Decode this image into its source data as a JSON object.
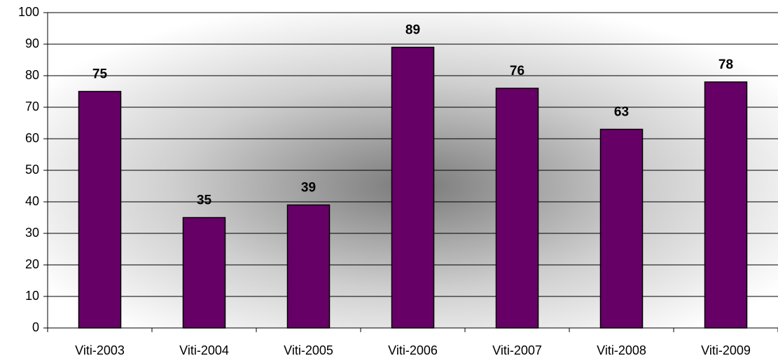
{
  "chart_data": {
    "type": "bar",
    "categories": [
      "Viti-2003",
      "Viti-2004",
      "Viti-2005",
      "Viti-2006",
      "Viti-2007",
      "Viti-2008",
      "Viti-2009"
    ],
    "values": [
      75,
      35,
      39,
      89,
      76,
      63,
      78
    ],
    "color": "#660066",
    "ylim": [
      0,
      100
    ],
    "yticks": [
      0,
      10,
      20,
      30,
      40,
      50,
      60,
      70,
      80,
      90,
      100
    ],
    "grid": true,
    "data_labels": true
  }
}
